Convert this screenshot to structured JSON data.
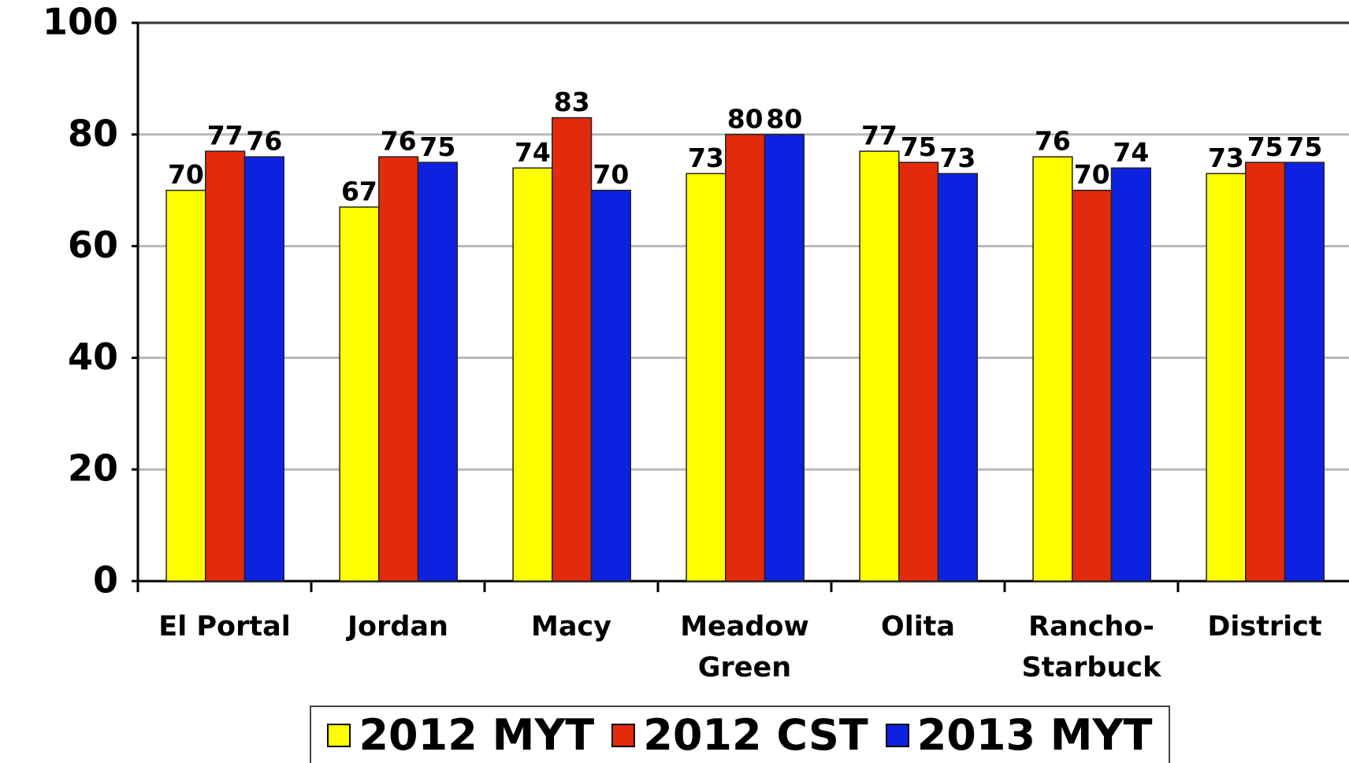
{
  "chart_data": {
    "type": "bar",
    "categories": [
      "El Portal",
      "Jordan",
      "Macy",
      "Meadow Green",
      "Olita",
      "Rancho-Starbuck",
      "District"
    ],
    "series": [
      {
        "name": "2012 MYT",
        "color": "#ffff00",
        "values": [
          70,
          67,
          74,
          73,
          77,
          76,
          73
        ]
      },
      {
        "name": "2012 CST",
        "color": "#e42a0c",
        "values": [
          77,
          76,
          83,
          80,
          75,
          70,
          75
        ]
      },
      {
        "name": "2013 MYT",
        "color": "#0c22e0",
        "values": [
          76,
          75,
          70,
          80,
          73,
          74,
          75
        ]
      }
    ],
    "ylim": [
      0,
      100
    ],
    "yticks": [
      0,
      20,
      40,
      60,
      80,
      100
    ],
    "grid": true,
    "legend": "bottom"
  }
}
